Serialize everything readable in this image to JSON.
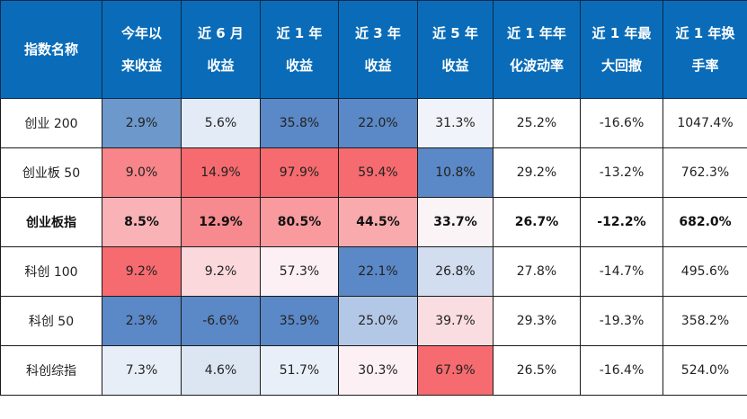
{
  "table": {
    "headers": [
      {
        "l1": "指数名称",
        "l2": ""
      },
      {
        "l1": "今年以",
        "l2": "来收益"
      },
      {
        "l1": "近 6 月",
        "l2": "收益"
      },
      {
        "l1": "近 1 年",
        "l2": "收益"
      },
      {
        "l1": "近 3 年",
        "l2": "收益"
      },
      {
        "l1": "近 5 年",
        "l2": "收益"
      },
      {
        "l1": "近 1 年年",
        "l2": "化波动率"
      },
      {
        "l1": "近 1 年最",
        "l2": "大回撤"
      },
      {
        "l1": "近 1 年换",
        "l2": "手率"
      }
    ],
    "rows": [
      {
        "name": "创业 200",
        "bold": false,
        "cells": [
          "2.9%",
          "5.6%",
          "35.8%",
          "22.0%",
          "31.3%",
          "25.2%",
          "-16.6%",
          "1047.4%"
        ],
        "colors": [
          "#6d98cc",
          "#e3ebf6",
          "#5b88c6",
          "#5b88c6",
          "#f1f3fa",
          "#ffffff",
          "#ffffff",
          "#ffffff"
        ]
      },
      {
        "name": "创业板 50",
        "bold": false,
        "cells": [
          "9.0%",
          "14.9%",
          "97.9%",
          "59.4%",
          "10.8%",
          "29.2%",
          "-13.2%",
          "762.3%"
        ],
        "colors": [
          "#f78589",
          "#f66b6f",
          "#f66b6f",
          "#f66b6f",
          "#5b88c6",
          "#ffffff",
          "#ffffff",
          "#ffffff"
        ]
      },
      {
        "name": "创业板指",
        "bold": true,
        "cells": [
          "8.5%",
          "12.9%",
          "80.5%",
          "44.5%",
          "33.7%",
          "26.7%",
          "-12.2%",
          "682.0%"
        ],
        "colors": [
          "#f9b3b6",
          "#f78a8e",
          "#f89a9e",
          "#f9aaad",
          "#fbf4f7",
          "#ffffff",
          "#ffffff",
          "#ffffff"
        ]
      },
      {
        "name": "科创 100",
        "bold": false,
        "cells": [
          "9.2%",
          "9.2%",
          "57.3%",
          "22.1%",
          "26.8%",
          "27.8%",
          "-14.7%",
          "495.6%"
        ],
        "colors": [
          "#f66b6f",
          "#fad8dc",
          "#fcf0f4",
          "#5b88c6",
          "#d2ddef",
          "#ffffff",
          "#ffffff",
          "#ffffff"
        ]
      },
      {
        "name": "科创 50",
        "bold": false,
        "cells": [
          "2.3%",
          "-6.6%",
          "35.9%",
          "25.0%",
          "39.7%",
          "29.3%",
          "-19.3%",
          "358.2%"
        ],
        "colors": [
          "#5b88c6",
          "#5b88c6",
          "#5b88c6",
          "#b3c8e6",
          "#fadde1",
          "#ffffff",
          "#ffffff",
          "#ffffff"
        ]
      },
      {
        "name": "科创综指",
        "bold": false,
        "cells": [
          "7.3%",
          "4.6%",
          "51.7%",
          "30.3%",
          "67.9%",
          "26.5%",
          "-16.4%",
          "524.0%"
        ],
        "colors": [
          "#e8eef8",
          "#dce6f3",
          "#e9eff8",
          "#fcf0f4",
          "#f66b6f",
          "#ffffff",
          "#ffffff",
          "#ffffff"
        ]
      }
    ]
  },
  "colors": {
    "header_bg": "#0a6cb8",
    "header_text": "#ffffff",
    "heat_high": "#f66b6f",
    "heat_low": "#5b88c6"
  }
}
